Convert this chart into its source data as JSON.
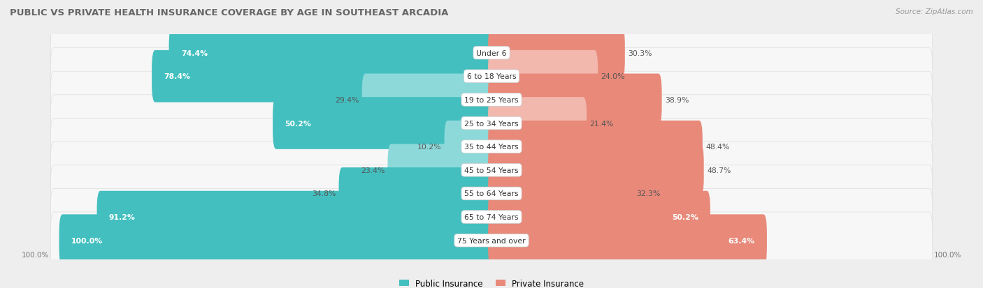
{
  "title": "PUBLIC VS PRIVATE HEALTH INSURANCE COVERAGE BY AGE IN SOUTHEAST ARCADIA",
  "source": "Source: ZipAtlas.com",
  "categories": [
    "Under 6",
    "6 to 18 Years",
    "19 to 25 Years",
    "25 to 34 Years",
    "35 to 44 Years",
    "45 to 54 Years",
    "55 to 64 Years",
    "65 to 74 Years",
    "75 Years and over"
  ],
  "public_values": [
    74.4,
    78.4,
    29.4,
    50.2,
    10.2,
    23.4,
    34.8,
    91.2,
    100.0
  ],
  "private_values": [
    30.3,
    24.0,
    38.9,
    21.4,
    48.4,
    48.7,
    32.3,
    50.2,
    63.4
  ],
  "public_color": "#43bfbf",
  "public_color_light": "#8dd9d9",
  "private_color": "#e8897a",
  "private_color_light": "#f2b8ae",
  "bg_color": "#eeeeee",
  "row_bg_color": "#f7f7f7",
  "row_border_color": "#dddddd",
  "title_color": "#666666",
  "value_color_dark": "#555555",
  "bar_height": 0.62,
  "max_value": 100.0,
  "legend_labels": [
    "Public Insurance",
    "Private Insurance"
  ],
  "axis_label_left": "100.0%",
  "axis_label_right": "100.0%",
  "figsize": [
    14.06,
    4.14
  ],
  "dpi": 100
}
